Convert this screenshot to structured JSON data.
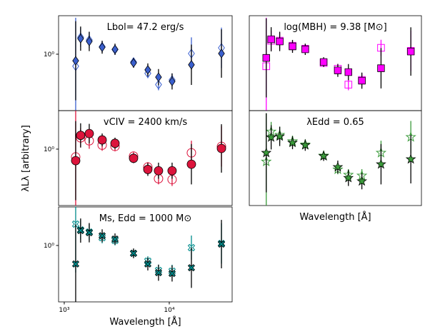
{
  "ylabel": "λLλ [arbitrary]",
  "chart_data": [
    {
      "type": "scatter",
      "annotation": "Lbol= 47.2 erg/s",
      "xlog": true,
      "ylog": true,
      "x": [
        1285,
        1432,
        1730,
        2296,
        3043,
        4570,
        6250,
        7900,
        10640,
        16250,
        31400
      ],
      "xlim": [
        883,
        39700
      ],
      "ylim": [
        0.2,
        3
      ],
      "yticks": [
        {
          "value": 1,
          "label": "10⁰"
        }
      ],
      "series": [
        {
          "color": "#3a5fcd",
          "marker": "diamond",
          "filled": true,
          "values": [
            0.83,
            1.56,
            1.44,
            1.22,
            1.15,
            0.78,
            0.64,
            0.52,
            0.46,
            0.74,
            1.02
          ],
          "errors": [
            0.49,
            0.15,
            0.12,
            0.08,
            0.07,
            0.06,
            0.08,
            0.1,
            0.1,
            0.25,
            0.3
          ]
        },
        {
          "color": "#3a5fcd",
          "marker": "diamond",
          "filled": false,
          "values": [
            0.71,
            1.62,
            1.5,
            1.24,
            1.14,
            0.8,
            0.58,
            0.42,
            0.48,
            1.02,
            1.2
          ],
          "errors": [
            0.6,
            0.12,
            0.1,
            0.07,
            0.06,
            0.05,
            0.06,
            0.07,
            0.08,
            0.2,
            0.25
          ]
        }
      ]
    },
    {
      "type": "scatter",
      "annotation": "log(MBH) = 9.38 [M⊙]",
      "xlog": true,
      "ylog": true,
      "x": [
        1285,
        1432,
        1730,
        2296,
        3043,
        4570,
        6250,
        7900,
        10640,
        16250,
        31400
      ],
      "xlim": [
        883,
        39700
      ],
      "ylim": [
        0.2,
        3
      ],
      "series": [
        {
          "color": "#ff00ff",
          "marker": "square",
          "filled": true,
          "values": [
            0.9,
            1.53,
            1.44,
            1.25,
            1.15,
            0.8,
            0.63,
            0.6,
            0.47,
            0.67,
            1.08
          ],
          "errors": [
            0.49,
            0.15,
            0.12,
            0.08,
            0.07,
            0.06,
            0.08,
            0.1,
            0.1,
            0.25,
            0.3
          ]
        },
        {
          "color": "#ff00ff",
          "marker": "square",
          "filled": false,
          "values": [
            0.71,
            1.47,
            1.47,
            1.27,
            1.17,
            0.78,
            0.66,
            0.42,
            0.48,
            1.2,
            1.1
          ],
          "errors": [
            0.6,
            0.12,
            0.1,
            0.07,
            0.06,
            0.05,
            0.06,
            0.07,
            0.08,
            0.1,
            0.25
          ]
        }
      ]
    },
    {
      "type": "scatter",
      "annotation": "vCIV = 2400 km/s",
      "xlog": true,
      "ylog": true,
      "x": [
        1285,
        1432,
        1730,
        2296,
        3043,
        4570,
        6250,
        7900,
        10640,
        16250,
        31400
      ],
      "xlim": [
        883,
        39700
      ],
      "ylim": [
        0.2,
        3
      ],
      "yticks": [
        {
          "value": 1,
          "label": "10⁰"
        }
      ],
      "series": [
        {
          "color": "#dc143c",
          "marker": "circle",
          "filled": true,
          "values": [
            0.72,
            1.48,
            1.56,
            1.3,
            1.18,
            0.77,
            0.56,
            0.54,
            0.54,
            0.65,
            1.02
          ],
          "errors": [
            0.49,
            0.15,
            0.12,
            0.08,
            0.07,
            0.06,
            0.08,
            0.1,
            0.1,
            0.25,
            0.3
          ]
        },
        {
          "color": "#dc143c",
          "marker": "circle",
          "filled": false,
          "values": [
            0.8,
            1.38,
            1.27,
            1.12,
            1.08,
            0.82,
            0.6,
            0.43,
            0.42,
            0.9,
            1.08
          ],
          "errors": [
            0.6,
            0.12,
            0.1,
            0.07,
            0.06,
            0.05,
            0.06,
            0.07,
            0.08,
            0.15,
            0.25
          ]
        }
      ]
    },
    {
      "type": "scatter",
      "annotation": "λEdd = 0.65",
      "xlabel": "Wavelength [Å]",
      "xlog": true,
      "ylog": true,
      "x": [
        1285,
        1432,
        1730,
        2296,
        3043,
        4570,
        6250,
        7900,
        10640,
        16250,
        31400
      ],
      "xlim": [
        883,
        39700
      ],
      "ylim": [
        0.2,
        3
      ],
      "series": [
        {
          "color": "#3a9a3a",
          "marker": "star",
          "filled": true,
          "values": [
            0.9,
            1.4,
            1.44,
            1.2,
            1.12,
            0.82,
            0.6,
            0.44,
            0.4,
            0.65,
            0.75
          ],
          "errors": [
            0.49,
            0.15,
            0.12,
            0.08,
            0.07,
            0.06,
            0.08,
            0.1,
            0.1,
            0.25,
            0.3
          ]
        },
        {
          "color": "#3a9a3a",
          "marker": "star",
          "filled": false,
          "values": [
            0.7,
            1.65,
            1.5,
            1.25,
            1.14,
            0.83,
            0.56,
            0.48,
            0.47,
            0.9,
            1.41
          ],
          "errors": [
            0.6,
            0.12,
            0.1,
            0.07,
            0.06,
            0.05,
            0.06,
            0.07,
            0.08,
            0.15,
            0.2
          ]
        }
      ]
    },
    {
      "type": "scatter",
      "annotation": "Ms, Edd = 1000 M⊙",
      "xlabel": "Wavelength [Å]",
      "xlog": true,
      "ylog": true,
      "x": [
        1285,
        1432,
        1730,
        2296,
        3043,
        4570,
        6250,
        7900,
        10640,
        16250,
        31400
      ],
      "xlim": [
        883,
        39700
      ],
      "ylim": [
        0.2,
        3
      ],
      "yticks": [
        {
          "value": 1,
          "label": "10⁰"
        }
      ],
      "xticks": [
        {
          "value": 1000,
          "label": "10³"
        },
        {
          "value": 10000,
          "label": "10⁴"
        }
      ],
      "series": [
        {
          "color": "#008b8b",
          "marker": "x",
          "filled": true,
          "values": [
            0.59,
            1.53,
            1.44,
            1.32,
            1.2,
            0.8,
            0.59,
            0.46,
            0.45,
            0.53,
            1.04
          ],
          "errors": [
            0.49,
            0.15,
            0.12,
            0.08,
            0.07,
            0.06,
            0.08,
            0.1,
            0.1,
            0.25,
            0.3
          ]
        },
        {
          "color": "#008b8b",
          "marker": "x",
          "filled": false,
          "values": [
            1.84,
            1.56,
            1.47,
            1.25,
            1.15,
            0.8,
            0.64,
            0.49,
            0.48,
            0.94,
            1.06
          ],
          "errors": [
            0.6,
            0.12,
            0.1,
            0.07,
            0.06,
            0.05,
            0.06,
            0.07,
            0.08,
            0.15,
            0.25
          ]
        }
      ]
    }
  ]
}
